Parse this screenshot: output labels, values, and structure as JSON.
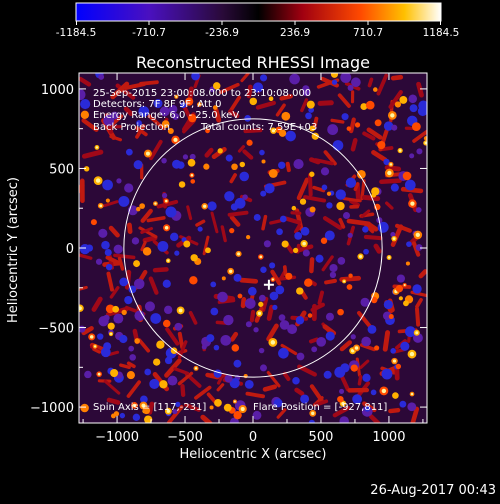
{
  "colorbar": {
    "ticks": [
      "-1184.5",
      "-710.7",
      "-236.9",
      "236.9",
      "710.7",
      "1184.5"
    ],
    "range": [
      -1184.5,
      1184.5
    ]
  },
  "chart_data": {
    "type": "heatmap",
    "title": "Reconstructed RHESSI Image",
    "xlabel": "Heliocentric X (arcsec)",
    "ylabel": "Heliocentric Y (arcsec)",
    "xlim": [
      -1280,
      1280
    ],
    "ylim": [
      -1100,
      1100
    ],
    "xticks": [
      -1000,
      -500,
      0,
      500,
      1000
    ],
    "yticks": [
      -1000,
      -500,
      0,
      500,
      1000
    ],
    "xtick_labels": [
      "−1000",
      "−500",
      "0",
      "500",
      "1000"
    ],
    "ytick_labels": [
      "−1000",
      "−500",
      "0",
      "500",
      "1000"
    ],
    "solar_limb": {
      "center": [
        0,
        0
      ],
      "radius_arcsec": 950
    },
    "marker": {
      "x": 117,
      "y": -231,
      "symbol": "+"
    },
    "annotations": {
      "time": "25-Sep-2015 23:00:08.000 to 23:10:08.000",
      "detectors": "Detectors: 7F 8F 9F, Att 0",
      "energy": "Energy Range: 6.0 - 25.0 keV",
      "method": "Back Projection",
      "counts": "Total counts: 7.59E+03",
      "spin_axis": "Spin Axis = [117,-231]",
      "flare_position": "Flare Position = [-927,811]"
    }
  },
  "footer": {
    "date": "26-Aug-2017 00:43"
  }
}
